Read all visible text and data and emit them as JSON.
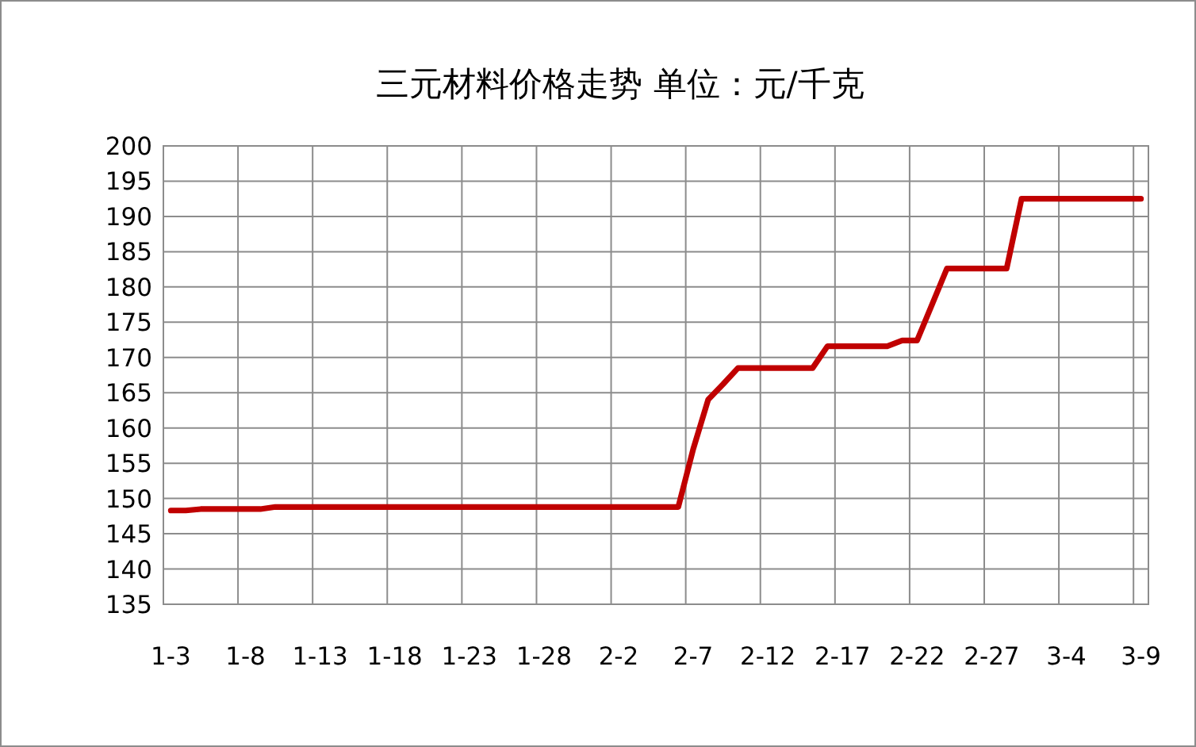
{
  "chart_data": {
    "type": "line",
    "title": "三元材料价格走势 单位：元/千克",
    "categories": [
      "1-3",
      null,
      null,
      null,
      null,
      "1-8",
      null,
      null,
      null,
      null,
      "1-13",
      null,
      null,
      null,
      null,
      "1-18",
      null,
      null,
      null,
      null,
      "1-23",
      null,
      null,
      null,
      null,
      "1-28",
      null,
      null,
      null,
      null,
      "2-2",
      null,
      null,
      null,
      null,
      "2-7",
      null,
      null,
      null,
      null,
      "2-12",
      null,
      null,
      null,
      null,
      "2-17",
      null,
      null,
      null,
      null,
      "2-22",
      null,
      null,
      null,
      null,
      "2-27",
      null,
      null,
      null,
      null,
      "3-4",
      null,
      null,
      null,
      null,
      "3-9"
    ],
    "series": [
      {
        "color": "#c00000",
        "values": [
          148.3,
          148.3,
          148.5,
          148.5,
          148.5,
          148.5,
          148.5,
          148.8,
          148.8,
          148.8,
          148.8,
          148.8,
          148.8,
          148.8,
          148.8,
          148.8,
          148.8,
          148.8,
          148.8,
          148.8,
          148.8,
          148.8,
          148.8,
          148.8,
          148.8,
          148.8,
          148.8,
          148.8,
          148.8,
          148.8,
          148.8,
          148.8,
          148.8,
          148.8,
          148.8,
          157,
          164,
          166.2,
          168.5,
          168.5,
          168.5,
          168.5,
          168.5,
          168.5,
          171.6,
          171.6,
          171.6,
          171.6,
          171.6,
          172.4,
          172.4,
          177.5,
          182.6,
          182.6,
          182.6,
          182.6,
          182.6,
          192.5,
          192.5,
          192.5,
          192.5,
          192.5,
          192.5,
          192.5,
          192.5,
          192.5
        ]
      }
    ],
    "ylim": [
      135,
      200
    ],
    "yticks": [
      135,
      140,
      145,
      150,
      155,
      160,
      165,
      170,
      175,
      180,
      185,
      190,
      195,
      200
    ],
    "grid": true
  }
}
